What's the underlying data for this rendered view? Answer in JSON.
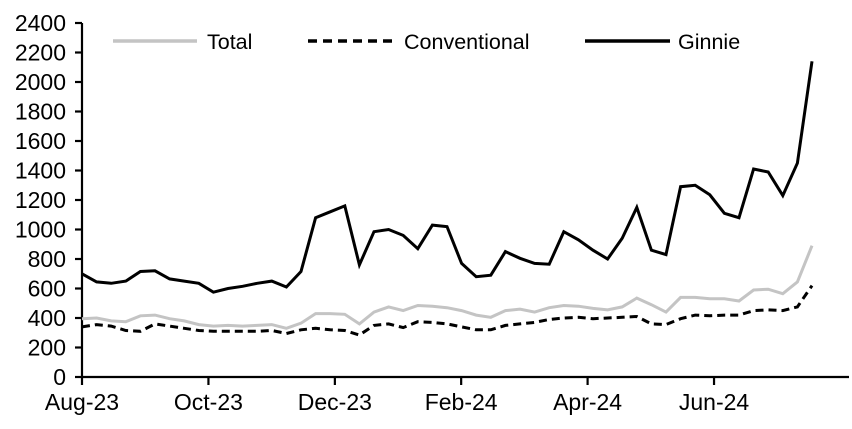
{
  "chart_data": {
    "type": "line",
    "title": "",
    "x_frequency": "weekly",
    "x_tick_labels": [
      "Aug-23",
      "Oct-23",
      "Dec-23",
      "Feb-24",
      "Apr-24",
      "Jun-24"
    ],
    "x_tick_positions_weeks": [
      0,
      8.66,
      17.32,
      25.97,
      34.63,
      43.29
    ],
    "ylim": [
      0,
      2400
    ],
    "y_tick_step": 200,
    "y_tick_labels": [
      "0",
      "200",
      "400",
      "600",
      "800",
      "1000",
      "1200",
      "1400",
      "1600",
      "1800",
      "2000",
      "2200",
      "2400"
    ],
    "grid": false,
    "legend_position": "top",
    "series": [
      {
        "name": "Total",
        "color": "#c4c4c4",
        "line_style": "solid",
        "values": [
          395,
          400,
          380,
          375,
          415,
          420,
          395,
          380,
          355,
          345,
          350,
          345,
          350,
          355,
          330,
          365,
          430,
          430,
          425,
          360,
          440,
          475,
          450,
          485,
          480,
          470,
          450,
          420,
          405,
          450,
          460,
          440,
          470,
          485,
          480,
          465,
          455,
          475,
          535,
          490,
          440,
          540,
          540,
          530,
          530,
          515,
          590,
          595,
          565,
          645,
          890
        ]
      },
      {
        "name": "Conventional",
        "color": "#000000",
        "line_style": "dashed",
        "values": [
          340,
          355,
          345,
          315,
          310,
          360,
          345,
          330,
          315,
          310,
          310,
          310,
          310,
          315,
          295,
          320,
          330,
          320,
          315,
          285,
          350,
          360,
          335,
          375,
          370,
          360,
          340,
          320,
          320,
          350,
          360,
          370,
          390,
          400,
          405,
          395,
          400,
          405,
          410,
          360,
          355,
          395,
          420,
          415,
          420,
          420,
          450,
          455,
          450,
          475,
          620
        ]
      },
      {
        "name": "Ginnie",
        "color": "#000000",
        "line_style": "solid",
        "values": [
          700,
          645,
          635,
          650,
          715,
          720,
          665,
          650,
          635,
          575,
          600,
          615,
          635,
          650,
          610,
          715,
          1080,
          1120,
          1160,
          760,
          985,
          1000,
          960,
          870,
          1030,
          1020,
          770,
          680,
          690,
          850,
          805,
          770,
          765,
          985,
          930,
          860,
          800,
          940,
          1150,
          860,
          830,
          1290,
          1300,
          1235,
          1110,
          1080,
          1410,
          1390,
          1230,
          1450,
          2140
        ]
      }
    ]
  },
  "colors": {
    "background": "#ffffff",
    "axis": "#000000",
    "text": "#000000"
  }
}
